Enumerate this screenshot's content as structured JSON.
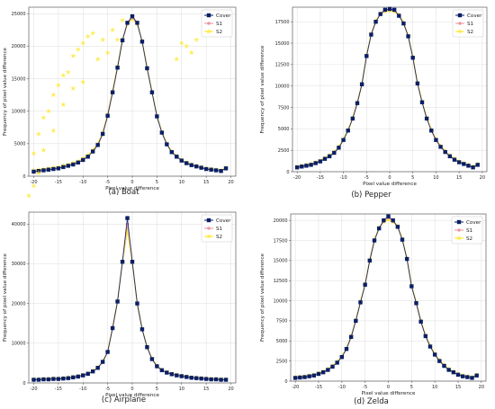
{
  "colors": {
    "cover": "#0b1f66",
    "s1": "#e8909a",
    "s2": "#fde725",
    "grid": "#dddddd",
    "frame": "#444444"
  },
  "chart_data": [
    {
      "type": "line",
      "caption": "(a) Boat",
      "xlabel": "Pixel value difference",
      "ylabel": "Frequency of pixel value difference",
      "xlim": [
        -21,
        21
      ],
      "ylim": [
        0,
        26000
      ],
      "xticks": [
        -20,
        -15,
        -10,
        -5,
        0,
        5,
        10,
        15,
        20
      ],
      "yticks": [
        0,
        5000,
        10000,
        15000,
        20000,
        25000
      ],
      "grid": true,
      "legend_position": "top-right",
      "x": [
        -20,
        -19,
        -18,
        -17,
        -16,
        -15,
        -14,
        -13,
        -12,
        -11,
        -10,
        -9,
        -8,
        -7,
        -6,
        -5,
        -4,
        -3,
        -2,
        -1,
        0,
        1,
        2,
        3,
        4,
        5,
        6,
        7,
        8,
        9,
        10,
        11,
        12,
        13,
        14,
        15,
        16,
        17,
        18,
        19
      ],
      "series": [
        {
          "name": "Cover",
          "marker": "square",
          "values": [
            700,
            800,
            900,
            1000,
            1100,
            1200,
            1400,
            1600,
            1800,
            2100,
            2500,
            3000,
            3800,
            4800,
            6500,
            9300,
            12900,
            16700,
            20900,
            23600,
            24600,
            23600,
            20700,
            16600,
            12900,
            9200,
            6700,
            4900,
            3700,
            3000,
            2400,
            2000,
            1700,
            1500,
            1300,
            1100,
            1000,
            900,
            800,
            1200
          ]
        },
        {
          "name": "S1",
          "marker": "circle",
          "values": [
            700,
            800,
            900,
            1000,
            1100,
            1200,
            1400,
            1600,
            1800,
            2100,
            2500,
            3000,
            3800,
            4800,
            6500,
            9300,
            12900,
            16700,
            20900,
            23500,
            24400,
            23500,
            20700,
            16600,
            12900,
            9200,
            6700,
            4900,
            3700,
            3000,
            2400,
            2000,
            1700,
            1500,
            1300,
            1100,
            1000,
            900,
            800,
            1200
          ]
        },
        {
          "name": "S2",
          "marker": "star",
          "values": [
            900,
            1000,
            1100,
            1200,
            1300,
            1400,
            1600,
            1800,
            2000,
            2300,
            2700,
            3200,
            4000,
            5000,
            6700,
            9500,
            13100,
            16900,
            21000,
            23400,
            24200,
            23400,
            20800,
            16700,
            13000,
            9300,
            6800,
            5000,
            3800,
            3100,
            2500,
            2100,
            1800,
            1600,
            1400,
            1200,
            1100,
            1000,
            900,
            1300
          ]
        }
      ],
      "scatter_extra": {
        "series": "S2",
        "x": [
          -21,
          -20,
          -20,
          -19,
          -19,
          -18,
          -18,
          -17,
          -16,
          -16,
          -15,
          -14,
          -14,
          -13,
          -12,
          -12,
          -11,
          -10,
          -10,
          -9,
          -8,
          -7,
          -6,
          -5,
          -4,
          -3,
          -2,
          9,
          10,
          11,
          12,
          13
        ],
        "y": [
          -3000,
          -1500,
          3500,
          500,
          6500,
          4000,
          9000,
          10000,
          7000,
          12500,
          14000,
          11000,
          15500,
          16000,
          13500,
          18500,
          19500,
          14500,
          20500,
          21500,
          22000,
          18000,
          21000,
          19000,
          22500,
          21000,
          24000,
          18000,
          20500,
          20000,
          19000,
          21000
        ]
      }
    },
    {
      "type": "line",
      "caption": "(b) Pepper",
      "xlabel": "Pixel value difference",
      "ylabel": "Frequency of pixel value difference",
      "xlim": [
        -21,
        21
      ],
      "ylim": [
        0,
        19200
      ],
      "xticks": [
        -20,
        -15,
        -10,
        -5,
        0,
        5,
        10,
        15,
        20
      ],
      "yticks": [
        0,
        2500,
        5000,
        7500,
        10000,
        12500,
        15000,
        17500
      ],
      "grid": true,
      "legend_position": "top-right",
      "x": [
        -20,
        -19,
        -18,
        -17,
        -16,
        -15,
        -14,
        -13,
        -12,
        -11,
        -10,
        -9,
        -8,
        -7,
        -6,
        -5,
        -4,
        -3,
        -2,
        -1,
        0,
        1,
        2,
        3,
        4,
        5,
        6,
        7,
        8,
        9,
        10,
        11,
        12,
        13,
        14,
        15,
        16,
        17,
        18,
        19
      ],
      "series": [
        {
          "name": "Cover",
          "marker": "square",
          "values": [
            500,
            600,
            700,
            800,
            1000,
            1200,
            1500,
            1800,
            2200,
            2800,
            3700,
            4800,
            6200,
            8000,
            10200,
            13500,
            16000,
            17500,
            18400,
            18900,
            19000,
            18900,
            18200,
            17300,
            15800,
            13300,
            10300,
            8100,
            6200,
            4800,
            3700,
            2900,
            2300,
            1800,
            1400,
            1100,
            900,
            700,
            500,
            800
          ]
        },
        {
          "name": "S1",
          "marker": "circle",
          "values": [
            500,
            600,
            700,
            800,
            1000,
            1200,
            1500,
            1800,
            2200,
            2800,
            3700,
            4800,
            6200,
            8000,
            10200,
            13500,
            16000,
            17500,
            18400,
            18800,
            18900,
            18800,
            18200,
            17300,
            15800,
            13300,
            10300,
            8100,
            6200,
            4800,
            3700,
            2900,
            2300,
            1800,
            1400,
            1100,
            900,
            700,
            500,
            800
          ]
        },
        {
          "name": "S2",
          "marker": "star",
          "values": [
            600,
            700,
            800,
            900,
            1100,
            1300,
            1600,
            1900,
            2300,
            2900,
            3800,
            4900,
            6300,
            8100,
            10300,
            13600,
            16100,
            17600,
            18500,
            18700,
            18800,
            18700,
            18300,
            17400,
            15900,
            13400,
            10400,
            8200,
            6300,
            4900,
            3800,
            3000,
            2400,
            1900,
            1500,
            1200,
            1000,
            800,
            600,
            900
          ]
        }
      ]
    },
    {
      "type": "line",
      "caption": "(c) Airplane",
      "xlabel": "Pixel value difference",
      "ylabel": "Frequency of pixel value difference",
      "xlim": [
        -21,
        21
      ],
      "ylim": [
        0,
        43000
      ],
      "xticks": [
        -20,
        -15,
        -10,
        -5,
        0,
        5,
        10,
        15,
        20
      ],
      "yticks": [
        0,
        10000,
        20000,
        30000,
        40000
      ],
      "grid": true,
      "legend_position": "top-right",
      "x": [
        -20,
        -19,
        -18,
        -17,
        -16,
        -15,
        -14,
        -13,
        -12,
        -11,
        -10,
        -9,
        -8,
        -7,
        -6,
        -5,
        -4,
        -3,
        -2,
        -1,
        0,
        1,
        2,
        3,
        4,
        5,
        6,
        7,
        8,
        9,
        10,
        11,
        12,
        13,
        14,
        15,
        16,
        17,
        18,
        19
      ],
      "series": [
        {
          "name": "Cover",
          "marker": "square",
          "values": [
            800,
            800,
            900,
            900,
            1000,
            1000,
            1100,
            1200,
            1400,
            1600,
            1900,
            2300,
            2900,
            3800,
            5300,
            7800,
            13800,
            20500,
            30500,
            41500,
            30500,
            20000,
            13500,
            9000,
            6000,
            4200,
            3200,
            2600,
            2200,
            1900,
            1700,
            1500,
            1300,
            1200,
            1100,
            1000,
            900,
            900,
            800,
            800
          ]
        },
        {
          "name": "S1",
          "marker": "circle",
          "values": [
            800,
            800,
            900,
            900,
            1000,
            1000,
            1100,
            1200,
            1400,
            1600,
            1900,
            2300,
            2900,
            3800,
            5300,
            7800,
            13800,
            20500,
            30500,
            40000,
            30500,
            20000,
            13500,
            9000,
            6000,
            4200,
            3200,
            2600,
            2200,
            1900,
            1700,
            1500,
            1300,
            1200,
            1100,
            1000,
            900,
            900,
            800,
            800
          ]
        },
        {
          "name": "S2",
          "marker": "star",
          "values": [
            900,
            900,
            1000,
            1000,
            1100,
            1100,
            1200,
            1300,
            1500,
            1700,
            2000,
            2400,
            3000,
            3900,
            5400,
            7900,
            13900,
            20600,
            30400,
            38500,
            30400,
            20100,
            13600,
            9100,
            6100,
            4300,
            3300,
            2700,
            2300,
            2000,
            1800,
            1600,
            1400,
            1300,
            1200,
            1100,
            1000,
            1000,
            900,
            900
          ]
        }
      ]
    },
    {
      "type": "line",
      "caption": "(d) Zelda",
      "xlabel": "Pixel value difference",
      "ylabel": "Frequency of pixel value difference",
      "xlim": [
        -21,
        21
      ],
      "ylim": [
        0,
        20800
      ],
      "xticks": [
        -20,
        -15,
        -10,
        -5,
        0,
        5,
        10,
        15,
        20
      ],
      "yticks": [
        0,
        2500,
        5000,
        7500,
        10000,
        12500,
        15000,
        17500,
        20000
      ],
      "grid": true,
      "legend_position": "top-right",
      "x": [
        -20,
        -19,
        -18,
        -17,
        -16,
        -15,
        -14,
        -13,
        -12,
        -11,
        -10,
        -9,
        -8,
        -7,
        -6,
        -5,
        -4,
        -3,
        -2,
        -1,
        0,
        1,
        2,
        3,
        4,
        5,
        6,
        7,
        8,
        9,
        10,
        11,
        12,
        13,
        14,
        15,
        16,
        17,
        18,
        19
      ],
      "series": [
        {
          "name": "Cover",
          "marker": "square",
          "values": [
            400,
            450,
            500,
            600,
            700,
            900,
            1100,
            1400,
            1800,
            2300,
            3000,
            4000,
            5500,
            7500,
            9800,
            12000,
            15000,
            17500,
            19000,
            20000,
            20500,
            20000,
            19200,
            17600,
            15200,
            11800,
            9700,
            7400,
            5600,
            4300,
            3300,
            2500,
            1900,
            1400,
            1100,
            800,
            600,
            500,
            400,
            700
          ]
        },
        {
          "name": "S1",
          "marker": "circle",
          "values": [
            400,
            450,
            500,
            600,
            700,
            900,
            1100,
            1400,
            1800,
            2300,
            3000,
            4000,
            5500,
            7500,
            9800,
            12000,
            15000,
            17500,
            19000,
            19900,
            20300,
            19900,
            19200,
            17600,
            15200,
            11800,
            9700,
            7400,
            5600,
            4300,
            3300,
            2500,
            1900,
            1400,
            1100,
            800,
            600,
            500,
            400,
            700
          ]
        },
        {
          "name": "S2",
          "marker": "star",
          "values": [
            500,
            550,
            600,
            700,
            800,
            1000,
            1200,
            1500,
            1900,
            2400,
            3100,
            4100,
            5600,
            7600,
            9900,
            12100,
            15100,
            17600,
            19100,
            19800,
            20100,
            19800,
            19300,
            17700,
            15300,
            11900,
            9800,
            7500,
            5700,
            4400,
            3400,
            2600,
            2000,
            1500,
            1200,
            900,
            700,
            600,
            500,
            800
          ]
        }
      ]
    }
  ]
}
